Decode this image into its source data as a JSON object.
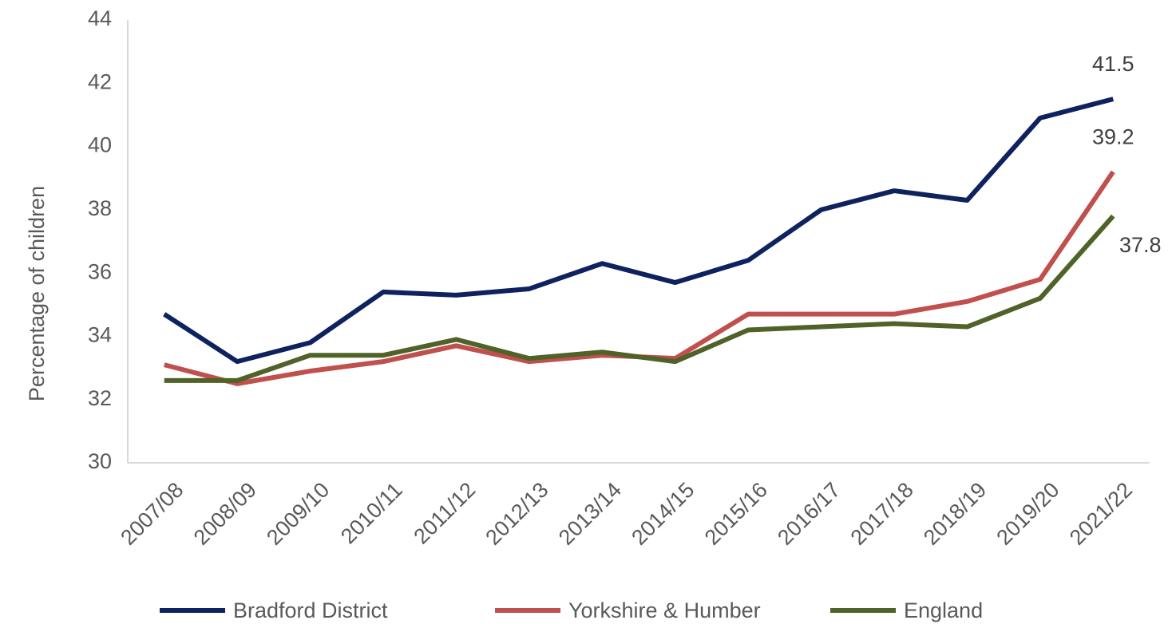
{
  "chart_data": {
    "type": "line",
    "y_label": "Percentage of children",
    "categories": [
      "2007/08",
      "2008/09",
      "2009/10",
      "2010/11",
      "2011/12",
      "2012/13",
      "2013/14",
      "2014/15",
      "2015/16",
      "2016/17",
      "2017/18",
      "2018/19",
      "2019/20",
      "2021/22"
    ],
    "series": [
      {
        "name": "Bradford District",
        "color": "#0f2260",
        "values": [
          34.7,
          33.2,
          33.8,
          35.4,
          35.3,
          35.5,
          36.3,
          35.7,
          36.4,
          38.0,
          38.6,
          38.3,
          40.9,
          41.5
        ]
      },
      {
        "name": "Yorkshire & Humber",
        "color": "#c0504d",
        "values": [
          33.1,
          32.5,
          32.9,
          33.2,
          33.7,
          33.2,
          33.4,
          33.3,
          34.7,
          34.7,
          34.7,
          35.1,
          35.8,
          39.2
        ]
      },
      {
        "name": "England",
        "color": "#4f6228",
        "values": [
          32.6,
          32.6,
          33.4,
          33.4,
          33.9,
          33.3,
          33.5,
          33.2,
          34.2,
          34.3,
          34.4,
          34.3,
          35.2,
          37.8
        ]
      }
    ],
    "ylim": [
      30,
      44
    ],
    "yticks": [
      30,
      32,
      34,
      36,
      38,
      40,
      42,
      44
    ],
    "last_value_labels": true,
    "legend": "bottom",
    "grid": false
  }
}
